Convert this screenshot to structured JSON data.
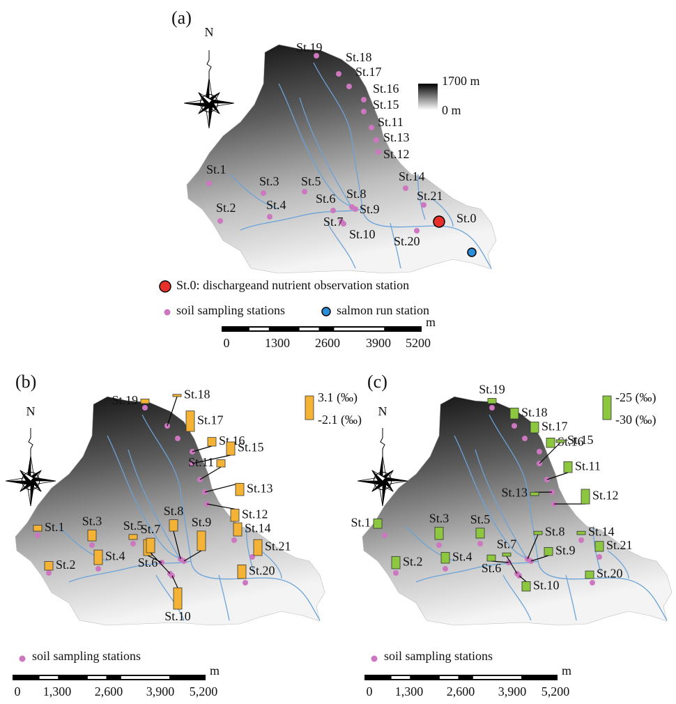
{
  "panels": [
    {
      "label": "(a)",
      "north": "N",
      "elevation_legend": [
        "1700 m",
        "0 m"
      ],
      "stations": [
        "St.19",
        "St.18",
        "St.17",
        "St.16",
        "St.15",
        "St.11",
        "St.13",
        "St.12",
        "St.14",
        "St.21",
        "St.1",
        "St.2",
        "St.3",
        "St.4",
        "St.5",
        "St.6",
        "St.8",
        "St.9",
        "St.7",
        "St.10",
        "St.20"
      ],
      "outlet": "St.0",
      "legend": {
        "outlet": "St.0: dischargeand nutrient observation station",
        "soil": "soil sampling stations",
        "salmon": "salmon run station"
      },
      "scale_bar": {
        "unit": "m",
        "labels": [
          "0",
          "1300",
          "2600",
          "3900",
          "5200"
        ]
      }
    },
    {
      "label": "(b)",
      "north": "N",
      "bar_color": "#f5b335",
      "bar_scale": [
        {
          "value": 3.1,
          "label": "3.1 (‰)"
        },
        {
          "value": -2.1,
          "label": "-2.1 (‰)"
        }
      ],
      "stations": [
        {
          "name": "St.19",
          "value": -1.1
        },
        {
          "name": "St.18",
          "value": -1.6
        },
        {
          "name": "St.17",
          "value": 2.4
        },
        {
          "name": "St.16",
          "value": -0.2
        },
        {
          "name": "St.15",
          "value": 0.8
        },
        {
          "name": "St.11",
          "value": -0.5
        },
        {
          "name": "St.13",
          "value": 0.6
        },
        {
          "name": "St.12",
          "value": 0.6
        },
        {
          "name": "St.14",
          "value": 0.8
        },
        {
          "name": "St.21",
          "value": 1.4
        },
        {
          "name": "St.1",
          "value": -0.8
        },
        {
          "name": "St.2",
          "value": -0.2
        },
        {
          "name": "St.3",
          "value": 0.3
        },
        {
          "name": "St.4",
          "value": 1.1
        },
        {
          "name": "St.5",
          "value": -1.0
        },
        {
          "name": "St.6",
          "value": 1.4
        },
        {
          "name": "St.8",
          "value": 0.4
        },
        {
          "name": "St.9",
          "value": 2.2
        },
        {
          "name": "St.7",
          "value": 1.1
        },
        {
          "name": "St.10",
          "value": 2.6
        },
        {
          "name": "St.20",
          "value": 0.9
        }
      ],
      "legend": {
        "soil": "soil sampling stations"
      },
      "scale_bar": {
        "unit": "m",
        "labels": [
          "0",
          "1,300",
          "2,600",
          "3,900",
          "5,200"
        ]
      }
    },
    {
      "label": "(c)",
      "north": "N",
      "bar_color": "#8dc63f",
      "bar_scale": [
        {
          "value": -25,
          "label": "-25 (‰)"
        },
        {
          "value": -30,
          "label": "-30 (‰)"
        }
      ],
      "stations": [
        {
          "name": "St.19",
          "value": -28.9
        },
        {
          "name": "St.18",
          "value": -27.7
        },
        {
          "name": "St.17",
          "value": -27.7
        },
        {
          "name": "St.16",
          "value": -28.0
        },
        {
          "name": "St.15",
          "value": -29.4
        },
        {
          "name": "St.11",
          "value": -27.7
        },
        {
          "name": "St.13",
          "value": -29.3
        },
        {
          "name": "St.12",
          "value": -26.9
        },
        {
          "name": "St.14",
          "value": -29.3
        },
        {
          "name": "St.21",
          "value": -27.9
        },
        {
          "name": "St.1",
          "value": -28.0
        },
        {
          "name": "St.2",
          "value": -27.4
        },
        {
          "name": "St.3",
          "value": -27.4
        },
        {
          "name": "St.4",
          "value": -27.7
        },
        {
          "name": "St.5",
          "value": -27.9
        },
        {
          "name": "St.6",
          "value": -28.7
        },
        {
          "name": "St.8",
          "value": -29.3
        },
        {
          "name": "St.9",
          "value": -28.3
        },
        {
          "name": "St.7",
          "value": -29.3
        },
        {
          "name": "St.10",
          "value": -28.0
        },
        {
          "name": "St.20",
          "value": -28.4
        }
      ],
      "legend": {
        "soil": "soil sampling stations"
      },
      "scale_bar": {
        "unit": "m",
        "labels": [
          "0",
          "1,300",
          "2,600",
          "3,900",
          "5,200"
        ]
      }
    }
  ]
}
